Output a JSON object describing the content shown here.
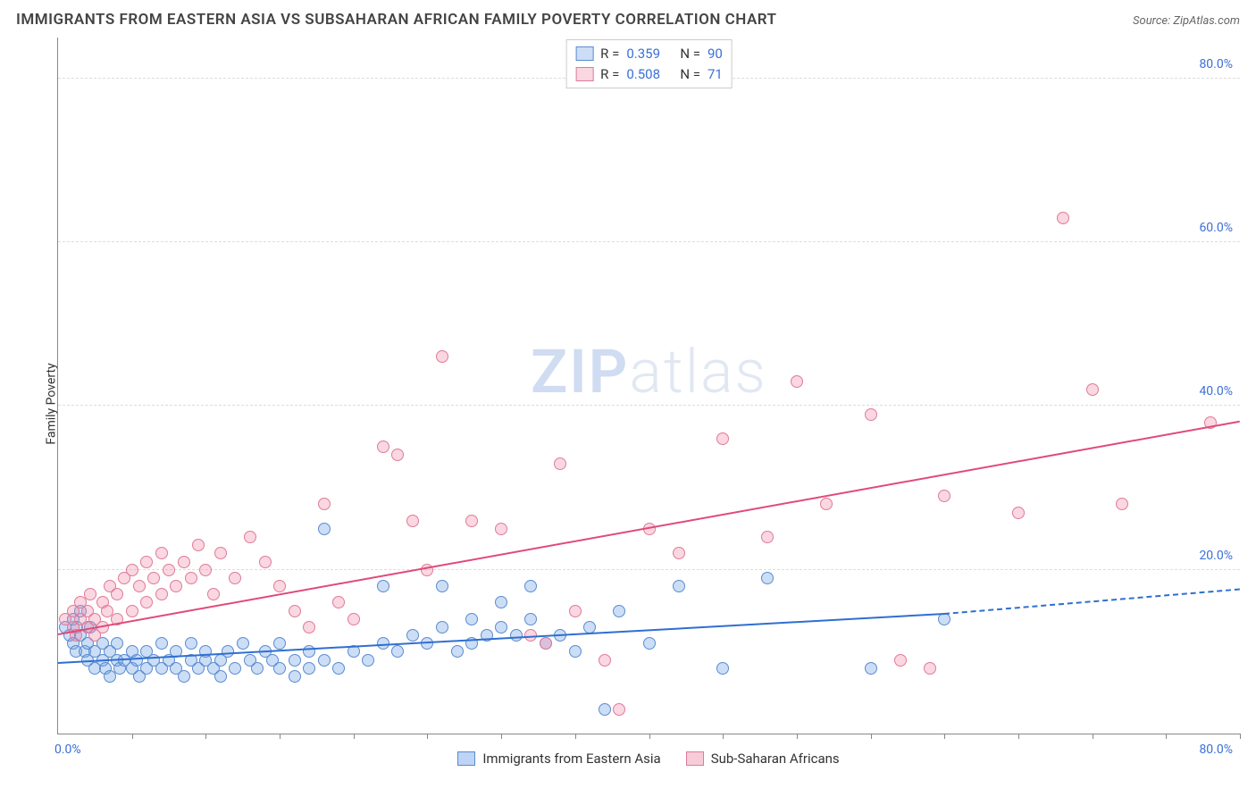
{
  "title": "IMMIGRANTS FROM EASTERN ASIA VS SUBSAHARAN AFRICAN FAMILY POVERTY CORRELATION CHART",
  "source": "Source: ZipAtlas.com",
  "ylabel": "Family Poverty",
  "watermark_a": "ZIP",
  "watermark_b": "atlas",
  "chart": {
    "type": "scatter",
    "xlim": [
      0,
      80
    ],
    "ylim": [
      0,
      85
    ],
    "x_min_label": "0.0%",
    "x_max_label": "80.0%",
    "xtick_positions": [
      5,
      10,
      15,
      20,
      25,
      30,
      35,
      40,
      45,
      50,
      55,
      60,
      65,
      70,
      75,
      80
    ],
    "y_gridlines": [
      20,
      40,
      60,
      80
    ],
    "y_tick_labels": [
      "20.0%",
      "40.0%",
      "60.0%",
      "80.0%"
    ],
    "tick_label_color": "#3b6fd8",
    "grid_color": "#dddddd",
    "axis_color": "#888888",
    "background_color": "#ffffff",
    "marker_radius": 7,
    "marker_border_width": 1.2,
    "series": [
      {
        "name": "Immigrants from Eastern Asia",
        "fill": "rgba(110, 160, 230, 0.35)",
        "stroke": "#5a8bd0",
        "R": "0.359",
        "N": "90",
        "trend": {
          "x1": 0,
          "y1": 8.5,
          "x2": 60,
          "y2": 14.5,
          "dash_x2": 80,
          "dash_y2": 17.5,
          "color": "#2f6fd0",
          "width": 2
        },
        "points": [
          [
            0.5,
            13
          ],
          [
            0.8,
            12
          ],
          [
            1,
            11
          ],
          [
            1,
            14
          ],
          [
            1.2,
            10
          ],
          [
            1.3,
            13
          ],
          [
            1.5,
            12
          ],
          [
            1.5,
            15
          ],
          [
            1.8,
            10
          ],
          [
            2,
            9
          ],
          [
            2,
            11
          ],
          [
            2.2,
            13
          ],
          [
            2.5,
            10
          ],
          [
            2.5,
            8
          ],
          [
            3,
            9
          ],
          [
            3,
            11
          ],
          [
            3.2,
            8
          ],
          [
            3.5,
            10
          ],
          [
            3.5,
            7
          ],
          [
            4,
            9
          ],
          [
            4,
            11
          ],
          [
            4.2,
            8
          ],
          [
            4.5,
            9
          ],
          [
            5,
            8
          ],
          [
            5,
            10
          ],
          [
            5.3,
            9
          ],
          [
            5.5,
            7
          ],
          [
            6,
            8
          ],
          [
            6,
            10
          ],
          [
            6.5,
            9
          ],
          [
            7,
            8
          ],
          [
            7,
            11
          ],
          [
            7.5,
            9
          ],
          [
            8,
            8
          ],
          [
            8,
            10
          ],
          [
            8.5,
            7
          ],
          [
            9,
            9
          ],
          [
            9,
            11
          ],
          [
            9.5,
            8
          ],
          [
            10,
            9
          ],
          [
            10,
            10
          ],
          [
            10.5,
            8
          ],
          [
            11,
            9
          ],
          [
            11,
            7
          ],
          [
            11.5,
            10
          ],
          [
            12,
            8
          ],
          [
            12.5,
            11
          ],
          [
            13,
            9
          ],
          [
            13.5,
            8
          ],
          [
            14,
            10
          ],
          [
            14.5,
            9
          ],
          [
            15,
            8
          ],
          [
            15,
            11
          ],
          [
            16,
            9
          ],
          [
            16,
            7
          ],
          [
            17,
            10
          ],
          [
            17,
            8
          ],
          [
            18,
            9
          ],
          [
            18,
            25
          ],
          [
            19,
            8
          ],
          [
            20,
            10
          ],
          [
            21,
            9
          ],
          [
            22,
            11
          ],
          [
            22,
            18
          ],
          [
            23,
            10
          ],
          [
            24,
            12
          ],
          [
            25,
            11
          ],
          [
            26,
            13
          ],
          [
            26,
            18
          ],
          [
            27,
            10
          ],
          [
            28,
            11
          ],
          [
            28,
            14
          ],
          [
            29,
            12
          ],
          [
            30,
            13
          ],
          [
            30,
            16
          ],
          [
            31,
            12
          ],
          [
            32,
            14
          ],
          [
            32,
            18
          ],
          [
            33,
            11
          ],
          [
            34,
            12
          ],
          [
            35,
            10
          ],
          [
            36,
            13
          ],
          [
            37,
            3
          ],
          [
            38,
            15
          ],
          [
            40,
            11
          ],
          [
            42,
            18
          ],
          [
            45,
            8
          ],
          [
            48,
            19
          ],
          [
            55,
            8
          ],
          [
            60,
            14
          ]
        ]
      },
      {
        "name": "Sub-Saharan Africans",
        "fill": "rgba(240, 140, 170, 0.35)",
        "stroke": "#e07a9a",
        "R": "0.508",
        "N": "71",
        "trend": {
          "x1": 0,
          "y1": 12,
          "x2": 80,
          "y2": 38,
          "color": "#e04a7a",
          "width": 2
        },
        "points": [
          [
            0.5,
            14
          ],
          [
            1,
            13
          ],
          [
            1,
            15
          ],
          [
            1.2,
            12
          ],
          [
            1.5,
            14
          ],
          [
            1.5,
            16
          ],
          [
            2,
            13
          ],
          [
            2,
            15
          ],
          [
            2.2,
            17
          ],
          [
            2.5,
            14
          ],
          [
            2.5,
            12
          ],
          [
            3,
            16
          ],
          [
            3,
            13
          ],
          [
            3.3,
            15
          ],
          [
            3.5,
            18
          ],
          [
            4,
            14
          ],
          [
            4,
            17
          ],
          [
            4.5,
            19
          ],
          [
            5,
            15
          ],
          [
            5,
            20
          ],
          [
            5.5,
            18
          ],
          [
            6,
            16
          ],
          [
            6,
            21
          ],
          [
            6.5,
            19
          ],
          [
            7,
            17
          ],
          [
            7,
            22
          ],
          [
            7.5,
            20
          ],
          [
            8,
            18
          ],
          [
            8.5,
            21
          ],
          [
            9,
            19
          ],
          [
            9.5,
            23
          ],
          [
            10,
            20
          ],
          [
            10.5,
            17
          ],
          [
            11,
            22
          ],
          [
            12,
            19
          ],
          [
            13,
            24
          ],
          [
            14,
            21
          ],
          [
            15,
            18
          ],
          [
            16,
            15
          ],
          [
            17,
            13
          ],
          [
            18,
            28
          ],
          [
            19,
            16
          ],
          [
            20,
            14
          ],
          [
            22,
            35
          ],
          [
            23,
            34
          ],
          [
            24,
            26
          ],
          [
            25,
            20
          ],
          [
            26,
            46
          ],
          [
            28,
            26
          ],
          [
            30,
            25
          ],
          [
            32,
            12
          ],
          [
            33,
            11
          ],
          [
            34,
            33
          ],
          [
            35,
            15
          ],
          [
            37,
            9
          ],
          [
            38,
            3
          ],
          [
            40,
            25
          ],
          [
            42,
            22
          ],
          [
            45,
            36
          ],
          [
            48,
            24
          ],
          [
            50,
            43
          ],
          [
            52,
            28
          ],
          [
            55,
            39
          ],
          [
            57,
            9
          ],
          [
            59,
            8
          ],
          [
            60,
            29
          ],
          [
            65,
            27
          ],
          [
            68,
            63
          ],
          [
            70,
            42
          ],
          [
            72,
            28
          ],
          [
            78,
            38
          ]
        ]
      }
    ]
  },
  "legend_top": {
    "R_label": "R  =",
    "N_label": "N  =",
    "value_color": "#3b6fd8"
  },
  "legend_bottom": [
    {
      "label": "Immigrants from Eastern Asia",
      "fill": "rgba(110, 160, 230, 0.45)",
      "stroke": "#5a8bd0"
    },
    {
      "label": "Sub-Saharan Africans",
      "fill": "rgba(240, 140, 170, 0.45)",
      "stroke": "#e07a9a"
    }
  ]
}
